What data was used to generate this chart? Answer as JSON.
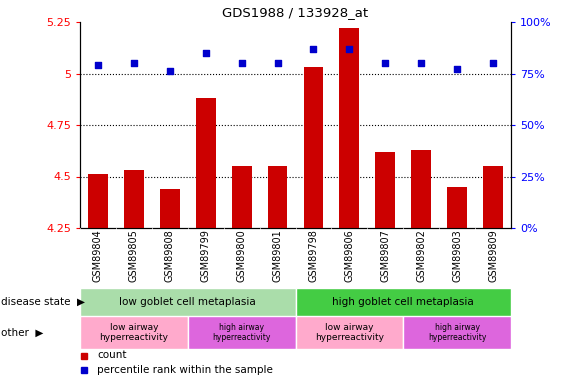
{
  "title": "GDS1988 / 133928_at",
  "samples": [
    "GSM89804",
    "GSM89805",
    "GSM89808",
    "GSM89799",
    "GSM89800",
    "GSM89801",
    "GSM89798",
    "GSM89806",
    "GSM89807",
    "GSM89802",
    "GSM89803",
    "GSM89809"
  ],
  "bar_values": [
    4.51,
    4.53,
    4.44,
    4.88,
    4.55,
    4.55,
    5.03,
    5.22,
    4.62,
    4.63,
    4.45,
    4.55
  ],
  "dot_values": [
    79,
    80,
    76,
    85,
    80,
    80,
    87,
    87,
    80,
    80,
    77,
    80
  ],
  "bar_bottom": 4.25,
  "ylim_left": [
    4.25,
    5.25
  ],
  "ylim_right": [
    0,
    100
  ],
  "yticks_left": [
    4.25,
    4.5,
    4.75,
    5.0,
    5.25
  ],
  "yticks_right": [
    0,
    25,
    50,
    75,
    100
  ],
  "ytick_labels_left": [
    "4.25",
    "4.5",
    "4.75",
    "5",
    "5.25"
  ],
  "ytick_labels_right": [
    "0%",
    "25%",
    "50%",
    "75%",
    "100%"
  ],
  "hlines": [
    4.5,
    4.75,
    5.0
  ],
  "bar_color": "#CC0000",
  "dot_color": "#0000CC",
  "disease_state_groups": [
    {
      "label": "low goblet cell metaplasia",
      "start": 0,
      "end": 6,
      "color": "#AADDAA"
    },
    {
      "label": "high goblet cell metaplasia",
      "start": 6,
      "end": 12,
      "color": "#44CC44"
    }
  ],
  "other_groups": [
    {
      "label": "low airway\nhyperreactivity",
      "start": 0,
      "end": 3,
      "color": "#FFAACC"
    },
    {
      "label": "high airway\nhyperreactivity",
      "start": 3,
      "end": 6,
      "color": "#DD66DD"
    },
    {
      "label": "low airway\nhyperreactivity",
      "start": 6,
      "end": 9,
      "color": "#FFAACC"
    },
    {
      "label": "high airway\nhyperreactivity",
      "start": 9,
      "end": 12,
      "color": "#DD66DD"
    }
  ],
  "legend_items": [
    {
      "label": "count",
      "color": "#CC0000"
    },
    {
      "label": "percentile rank within the sample",
      "color": "#0000CC"
    }
  ]
}
